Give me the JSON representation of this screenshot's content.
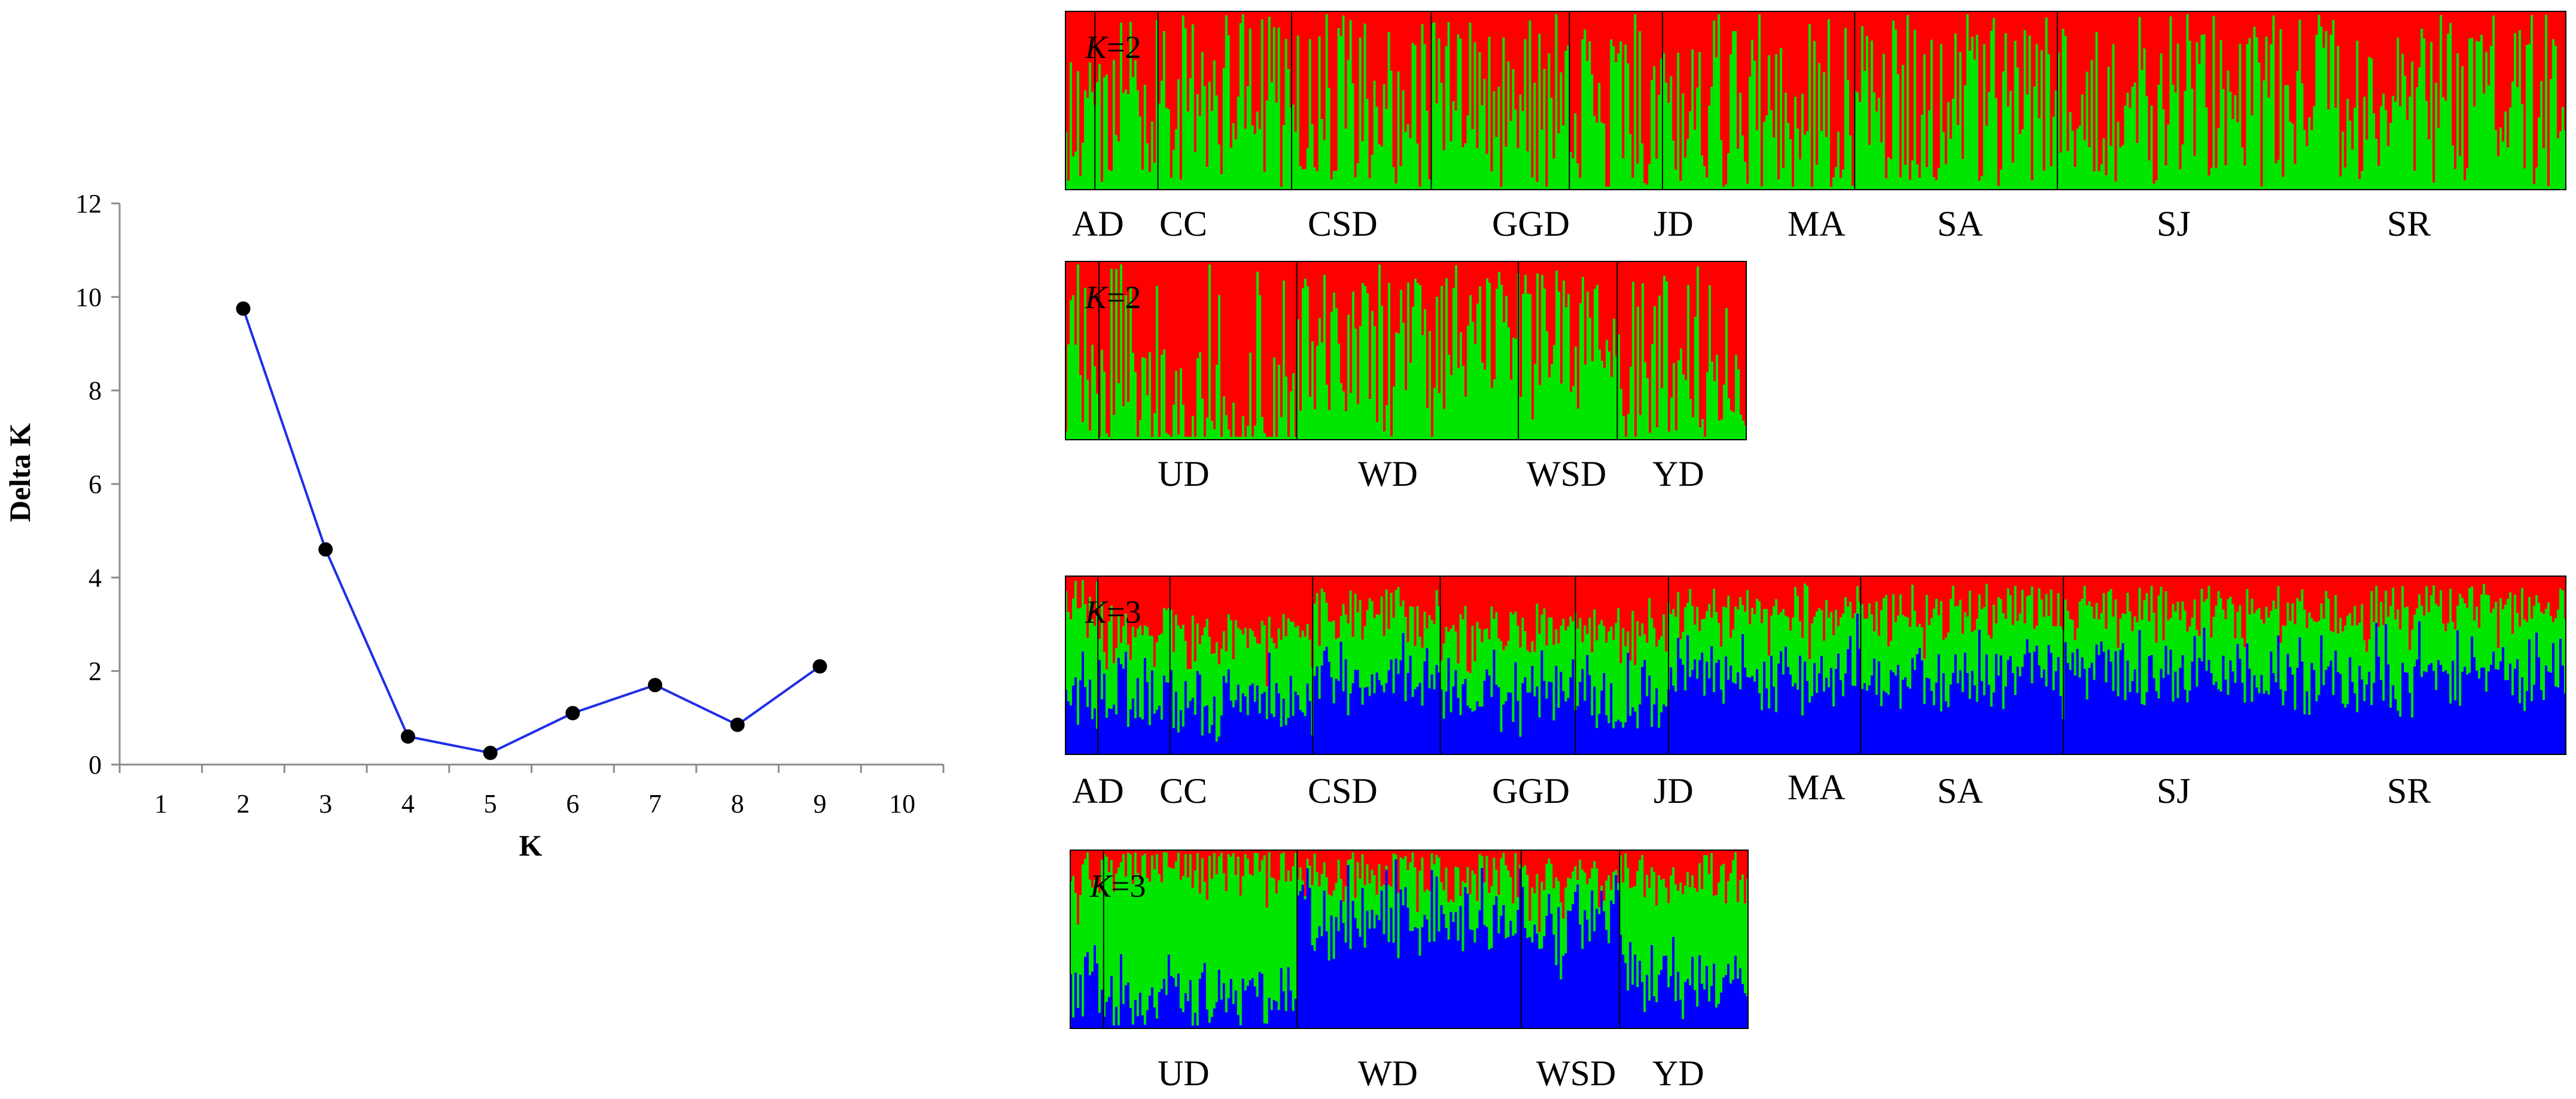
{
  "chart_data": [
    {
      "type": "line",
      "title": "",
      "xlabel": "K",
      "ylabel": "Delta K",
      "x_ticks": [
        "1",
        "2",
        "3",
        "4",
        "5",
        "6",
        "7",
        "8",
        "9",
        "10"
      ],
      "y_ticks": [
        "0",
        "2",
        "4",
        "6",
        "8",
        "10",
        "12"
      ],
      "xlim": [
        0.5,
        10.5
      ],
      "ylim": [
        0,
        12
      ],
      "grid": false,
      "series": [
        {
          "name": "Delta K",
          "x": [
            2,
            3,
            4,
            5,
            6,
            7,
            8,
            9
          ],
          "values": [
            9.75,
            4.6,
            0.6,
            0.25,
            1.1,
            1.7,
            0.85,
            2.1
          ],
          "color": "#1f2ee6",
          "marker_color": "#000000"
        }
      ]
    },
    {
      "type": "structure-barplot",
      "k_prefix": "K",
      "panels": [
        {
          "k": "2",
          "suffix": "=2",
          "clusters": 2,
          "colors": [
            "#00e600",
            "#ff0000"
          ],
          "populations": [
            "AD",
            "CC",
            "CSD",
            "GGD",
            "JD",
            "MA",
            "SA",
            "SJ",
            "SR"
          ]
        },
        {
          "k": "2",
          "suffix": "=2",
          "clusters": 2,
          "colors": [
            "#00e600",
            "#ff0000"
          ],
          "populations": [
            "UD",
            "WD",
            "WSD",
            "YD"
          ]
        },
        {
          "k": "3",
          "suffix": "=3",
          "clusters": 3,
          "colors": [
            "#0000ff",
            "#00e600",
            "#ff0000"
          ],
          "populations": [
            "AD",
            "CC",
            "CSD",
            "GGD",
            "JD",
            "MA",
            "SA",
            "SJ",
            "SR"
          ]
        },
        {
          "k": "3",
          "suffix": "=3",
          "clusters": 3,
          "colors": [
            "#0000ff",
            "#00e600",
            "#ff0000"
          ],
          "populations": [
            "UD",
            "WD",
            "WSD",
            "YD"
          ]
        }
      ]
    }
  ]
}
